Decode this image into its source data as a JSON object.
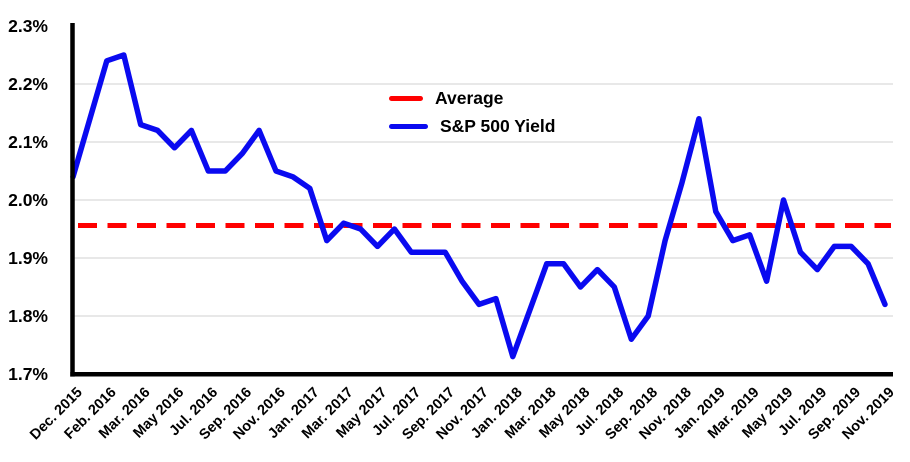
{
  "page": {
    "background": "#FFFFFF"
  },
  "colors": {
    "axis": "#000000",
    "grid": "#D9D9D9",
    "average_line": "#FF0000",
    "yield_line": "#0A0AF0",
    "text": "#000000"
  },
  "legend": {
    "average_label": "Average",
    "yield_label": "S&P 500 Yield"
  },
  "chart_data": {
    "type": "line",
    "title": "",
    "xlabel": "",
    "ylabel": "",
    "grid": {
      "show": true,
      "color": "#D9D9D9",
      "lines_at": [
        2.2,
        2.1,
        2.0,
        1.9,
        1.8
      ]
    },
    "y_axis": {
      "min": 1.7,
      "max": 2.3,
      "tick_labels": [
        "2.3%",
        "2.2%",
        "2.1%",
        "2.0%",
        "1.9%",
        "1.8%",
        "1.7%"
      ],
      "tick_values": [
        2.3,
        2.2,
        2.1,
        2.0,
        1.9,
        1.8,
        1.7
      ]
    },
    "x_axis": {
      "tick_labels": [
        "Dec. 2015",
        "Feb. 2016",
        "Mar. 2016",
        "May 2016",
        "Jul. 2016",
        "Sep. 2016",
        "Nov. 2016",
        "Jan. 2017",
        "Mar. 2017",
        "May 2017",
        "Jul. 2017",
        "Sep. 2017",
        "Nov. 2017",
        "Jan. 2018",
        "Mar. 2018",
        "May 2018",
        "Jul. 2018",
        "Sep. 2018",
        "Nov. 2018",
        "Jan. 2019",
        "Mar. 2019",
        "May 2019",
        "Jul. 2019",
        "Sep. 2019",
        "Nov. 2019"
      ],
      "label_every_n_points": 2,
      "rotation_deg": -45
    },
    "legend": {
      "position": "upper-center",
      "border": false,
      "entries": [
        "Average",
        "S&P 500 Yield"
      ]
    },
    "series": [
      {
        "name": "Average",
        "style": "dashed",
        "color": "#FF0000",
        "constant_value": 1.956
      },
      {
        "name": "S&P 500 Yield",
        "style": "solid",
        "color": "#0A0AF0",
        "values": [
          2.04,
          2.14,
          2.24,
          2.25,
          2.13,
          2.12,
          2.09,
          2.12,
          2.05,
          2.05,
          2.08,
          2.12,
          2.05,
          2.04,
          2.02,
          1.93,
          1.96,
          1.95,
          1.92,
          1.95,
          1.91,
          1.91,
          1.91,
          1.86,
          1.82,
          1.83,
          1.73,
          1.81,
          1.89,
          1.89,
          1.85,
          1.88,
          1.85,
          1.76,
          1.8,
          1.93,
          2.03,
          2.14,
          1.98,
          1.93,
          1.94,
          1.86,
          2.0,
          1.91,
          1.88,
          1.92,
          1.92,
          1.89,
          1.82
        ]
      }
    ]
  }
}
